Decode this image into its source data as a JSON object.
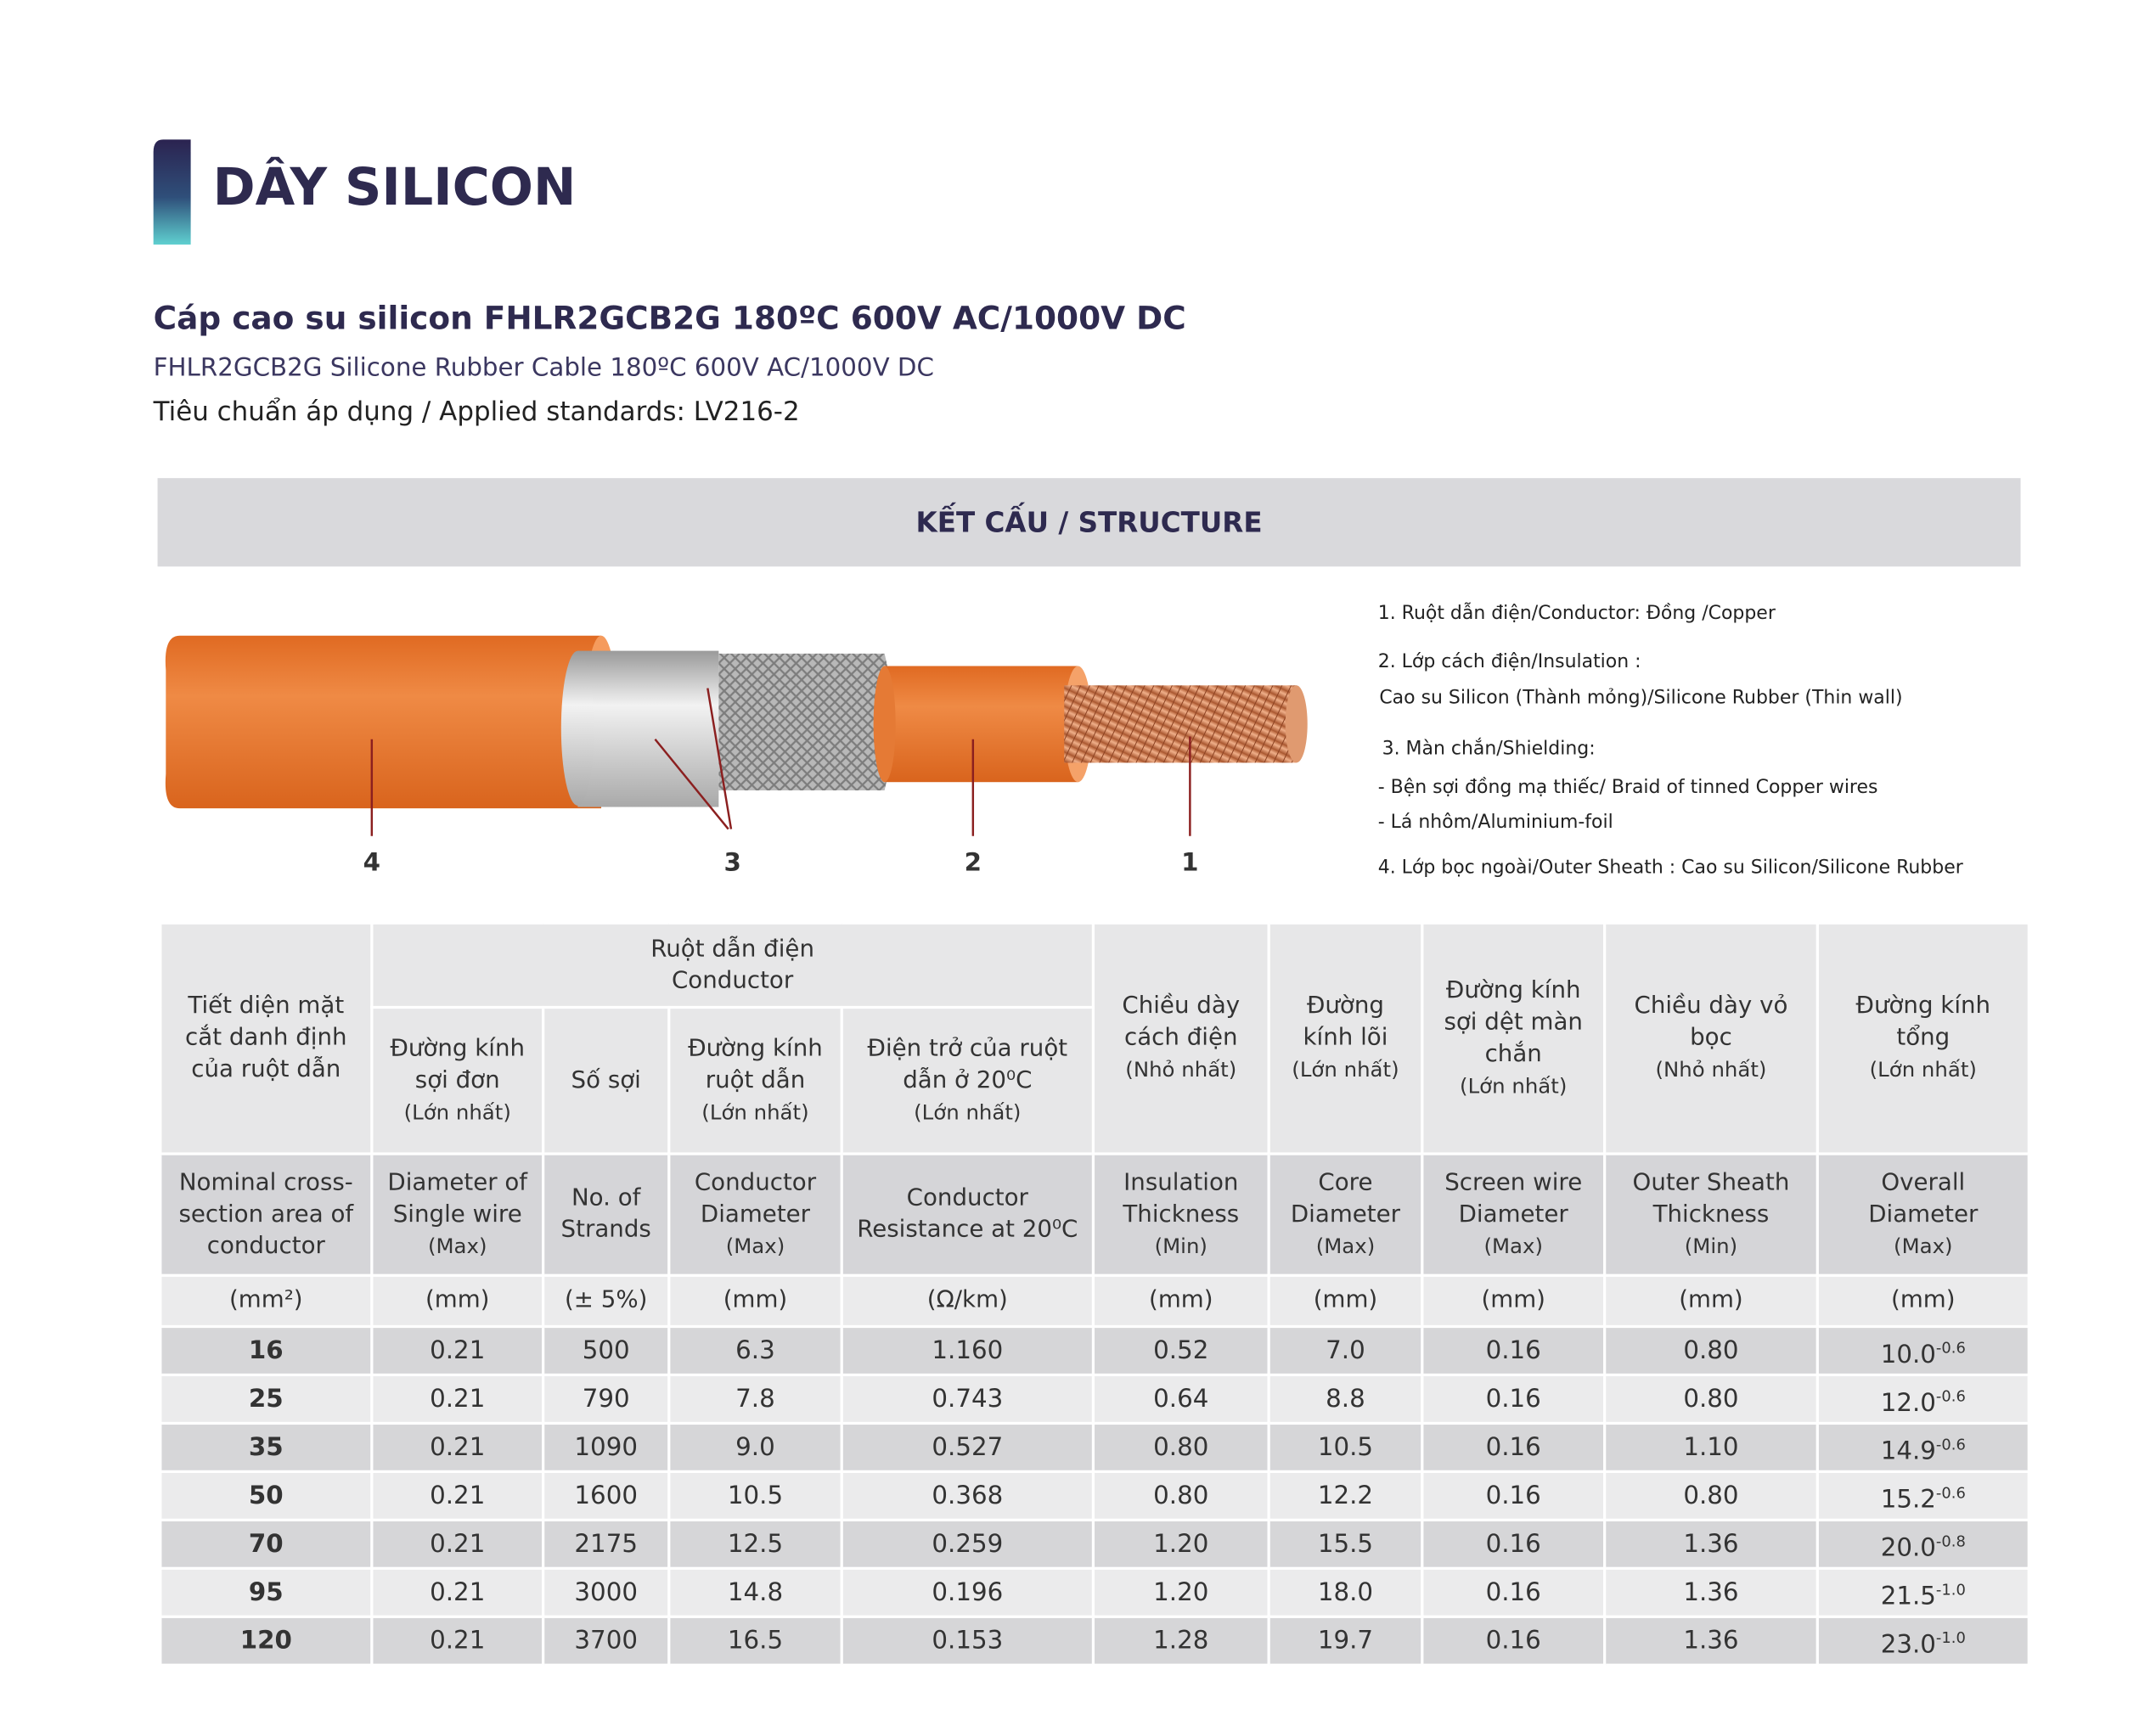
{
  "header": {
    "title": "DÂY SILICON"
  },
  "product": {
    "title_vi": "Cáp cao su silicon FHLR2GCB2G  180ºC 600V AC/1000V DC",
    "title_en": "FHLR2GCB2G Silicone Rubber Cable 180ºC 600V AC/1000V DC",
    "standard": "Tiêu chuẩn áp dụng / Applied standards: LV216-2"
  },
  "structure": {
    "heading": "KẾT CẤU / STRUCTURE",
    "callouts": [
      "4",
      "3",
      "2",
      "1"
    ],
    "legend": [
      "1. Ruột dẫn điện/Conductor:  Đồng /Copper",
      "2. Lớp cách điện/Insulation :",
      "Cao su Silicon (Thành mỏng)/Silicone Rubber (Thin wall)",
      "3. Màn chắn/Shielding:",
      "- Bện sợi đồng mạ thiếc/ Braid of tinned Copper wires",
      "- Lá nhôm/Aluminium-foil",
      "4. Lớp bọc ngoài/Outer Sheath : Cao su Silicon/Silicone Rubber"
    ]
  },
  "table": {
    "group": [
      "Ruột dẫn điện",
      "Conductor"
    ],
    "columns": [
      {
        "vi": "Tiết diện mặt cắt danh định của ruột dẫn",
        "en": "Nominal cross-section area of conductor",
        "unit": "(mm²)"
      },
      {
        "vi": "Đường kính sợi đơn",
        "vi_note": "(Lớn nhất)",
        "en": "Diameter of Single wire",
        "en_note": "(Max)",
        "unit": "(mm)"
      },
      {
        "vi": "Số sợi",
        "en": "No. of Strands",
        "unit": "(± 5%)"
      },
      {
        "vi": "Đường kính ruột dẫn",
        "vi_note": "(Lớn nhất)",
        "en": "Conductor Diameter",
        "en_note": "(Max)",
        "unit": "(mm)"
      },
      {
        "vi": "Điện trở của ruột dẫn ở 20⁰C",
        "vi_note": "(Lớn nhất)",
        "en": "Conductor Resistance at 20⁰C",
        "unit": "(Ω/km)"
      },
      {
        "vi": "Chiều dày cách điện",
        "vi_note": "(Nhỏ nhất)",
        "en": "Insulation Thickness",
        "en_note": "(Min)",
        "unit": "(mm)"
      },
      {
        "vi": "Đường kính lõi",
        "vi_note": "(Lớn nhất)",
        "en": "Core Diameter",
        "en_note": "(Max)",
        "unit": "(mm)"
      },
      {
        "vi": "Đường kính sợi dệt màn chắn",
        "vi_note": "(Lớn nhất)",
        "en": "Screen wire Diameter",
        "en_note": "(Max)",
        "unit": "(mm)"
      },
      {
        "vi": "Chiều dày vỏ bọc",
        "vi_note": "(Nhỏ nhất)",
        "en": "Outer Sheath Thickness",
        "en_note": "(Min)",
        "unit": "(mm)"
      },
      {
        "vi": "Đường kính tổng",
        "vi_note": "(Lớn nhất)",
        "en": "Overall Diameter",
        "en_note": "(Max)",
        "unit": "(mm)"
      }
    ],
    "rows": [
      [
        "16",
        "0.21",
        "500",
        "6.3",
        "1.160",
        "0.52",
        "7.0",
        "0.16",
        "0.80",
        {
          "value": "10.0",
          "tol": "-0.6"
        }
      ],
      [
        "25",
        "0.21",
        "790",
        "7.8",
        "0.743",
        "0.64",
        "8.8",
        "0.16",
        "0.80",
        {
          "value": "12.0",
          "tol": "-0.6"
        }
      ],
      [
        "35",
        "0.21",
        "1090",
        "9.0",
        "0.527",
        "0.80",
        "10.5",
        "0.16",
        "1.10",
        {
          "value": "14.9",
          "tol": "-0.6"
        }
      ],
      [
        "50",
        "0.21",
        "1600",
        "10.5",
        "0.368",
        "0.80",
        "12.2",
        "0.16",
        "0.80",
        {
          "value": "15.2",
          "tol": "-0.6"
        }
      ],
      [
        "70",
        "0.21",
        "2175",
        "12.5",
        "0.259",
        "1.20",
        "15.5",
        "0.16",
        "1.36",
        {
          "value": "20.0",
          "tol": "-0.8"
        }
      ],
      [
        "95",
        "0.21",
        "3000",
        "14.8",
        "0.196",
        "1.20",
        "18.0",
        "0.16",
        "1.36",
        {
          "value": "21.5",
          "tol": "-1.0"
        }
      ],
      [
        "120",
        "0.21",
        "3700",
        "16.5",
        "0.153",
        "1.28",
        "19.7",
        "0.16",
        "1.36",
        {
          "value": "23.0",
          "tol": "-1.0"
        }
      ]
    ]
  }
}
